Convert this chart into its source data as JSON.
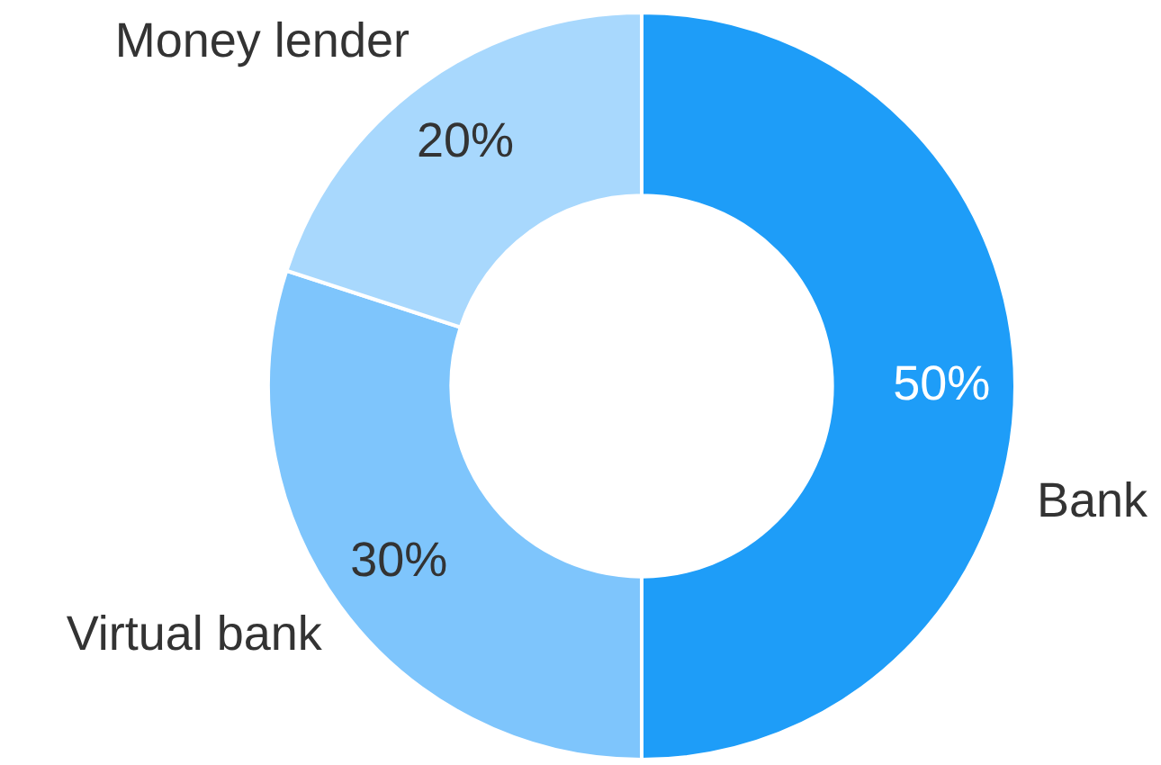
{
  "chart_data": {
    "type": "donut",
    "categories": [
      "Bank",
      "Virtual bank",
      "Money lender"
    ],
    "values": [
      50,
      30,
      20
    ],
    "colors": [
      "#1e9df8",
      "#7ec5fc",
      "#a8d8fd"
    ],
    "value_labels": [
      "50%",
      "30%",
      "20%"
    ],
    "legend": false
  }
}
